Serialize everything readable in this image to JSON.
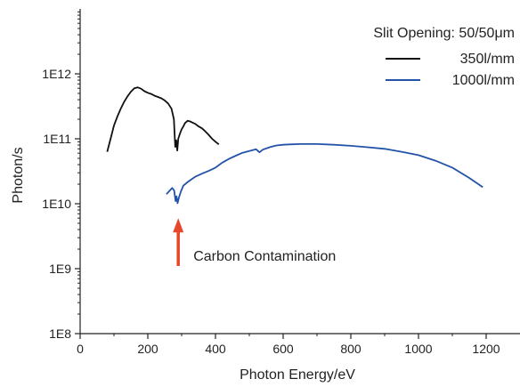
{
  "chart_data": {
    "type": "line",
    "title": "",
    "xlabel": "Photon Energy/eV",
    "ylabel": "Photon/s",
    "xlim": [
      0,
      1300
    ],
    "ylim": [
      100000000.0,
      10000000000000.0
    ],
    "yscale": "log",
    "x_ticks": [
      0,
      200,
      400,
      600,
      800,
      1000,
      1200
    ],
    "x_tick_labels": [
      "0",
      "200",
      "400",
      "600",
      "800",
      "1000",
      "1200"
    ],
    "y_ticks": [
      100000000.0,
      1000000000.0,
      10000000000.0,
      100000000000.0,
      1000000000000.0
    ],
    "y_tick_labels": [
      "1E8",
      "1E9",
      "1E10",
      "1E11",
      "1E12"
    ],
    "grid": false,
    "legend": {
      "placement": "top-right",
      "title": "Slit Opening: 50/50μm"
    },
    "series": [
      {
        "name": "350l/mm",
        "color": "#111111",
        "points": [
          [
            80,
            63000000000.0
          ],
          [
            90,
            100000000000.0
          ],
          [
            100,
            160000000000.0
          ],
          [
            110,
            220000000000.0
          ],
          [
            120,
            290000000000.0
          ],
          [
            130,
            370000000000.0
          ],
          [
            140,
            450000000000.0
          ],
          [
            150,
            530000000000.0
          ],
          [
            160,
            600000000000.0
          ],
          [
            170,
            620000000000.0
          ],
          [
            180,
            590000000000.0
          ],
          [
            190,
            540000000000.0
          ],
          [
            200,
            510000000000.0
          ],
          [
            210,
            490000000000.0
          ],
          [
            220,
            460000000000.0
          ],
          [
            230,
            440000000000.0
          ],
          [
            240,
            420000000000.0
          ],
          [
            250,
            390000000000.0
          ],
          [
            260,
            350000000000.0
          ],
          [
            270,
            290000000000.0
          ],
          [
            277,
            200000000000.0
          ],
          [
            281,
            75000000000.0
          ],
          [
            284,
            95000000000.0
          ],
          [
            287,
            66000000000.0
          ],
          [
            290,
            100000000000.0
          ],
          [
            295,
            120000000000.0
          ],
          [
            300,
            140000000000.0
          ],
          [
            305,
            155000000000.0
          ],
          [
            310,
            175000000000.0
          ],
          [
            318,
            190000000000.0
          ],
          [
            325,
            185000000000.0
          ],
          [
            330,
            180000000000.0
          ],
          [
            340,
            170000000000.0
          ],
          [
            350,
            155000000000.0
          ],
          [
            360,
            145000000000.0
          ],
          [
            370,
            130000000000.0
          ],
          [
            380,
            115000000000.0
          ],
          [
            390,
            100000000000.0
          ],
          [
            400,
            90000000000.0
          ],
          [
            410,
            82000000000.0
          ]
        ]
      },
      {
        "name": "1000l/mm",
        "color": "#2353a8",
        "points": [
          [
            255,
            14000000000.0
          ],
          [
            265,
            16000000000.0
          ],
          [
            272,
            17500000000.0
          ],
          [
            278,
            16000000000.0
          ],
          [
            282,
            11000000000.0
          ],
          [
            285,
            13000000000.0
          ],
          [
            288,
            10200000000.0
          ],
          [
            292,
            12500000000.0
          ],
          [
            298,
            15500000000.0
          ],
          [
            305,
            19000000000.0
          ],
          [
            315,
            21000000000.0
          ],
          [
            325,
            23000000000.0
          ],
          [
            340,
            26000000000.0
          ],
          [
            360,
            29000000000.0
          ],
          [
            380,
            32000000000.0
          ],
          [
            400,
            36000000000.0
          ],
          [
            420,
            43000000000.0
          ],
          [
            440,
            49000000000.0
          ],
          [
            460,
            55000000000.0
          ],
          [
            480,
            61000000000.0
          ],
          [
            500,
            65000000000.0
          ],
          [
            520,
            69000000000.0
          ],
          [
            530,
            62000000000.0
          ],
          [
            540,
            68000000000.0
          ],
          [
            560,
            74000000000.0
          ],
          [
            580,
            79000000000.0
          ],
          [
            600,
            81000000000.0
          ],
          [
            620,
            82000000000.0
          ],
          [
            650,
            83000000000.0
          ],
          [
            700,
            83000000000.0
          ],
          [
            750,
            81000000000.0
          ],
          [
            800,
            78000000000.0
          ],
          [
            850,
            74000000000.0
          ],
          [
            900,
            70000000000.0
          ],
          [
            950,
            63000000000.0
          ],
          [
            1000,
            56000000000.0
          ],
          [
            1050,
            46000000000.0
          ],
          [
            1100,
            36000000000.0
          ],
          [
            1150,
            25000000000.0
          ],
          [
            1190,
            18000000000.0
          ]
        ]
      }
    ],
    "annotations": [
      {
        "text": "Carbon Contamination",
        "arrow_color": "#e8472b",
        "x": 290,
        "y_from": 1100000000.0,
        "y_to": 6000000000.0
      }
    ]
  }
}
